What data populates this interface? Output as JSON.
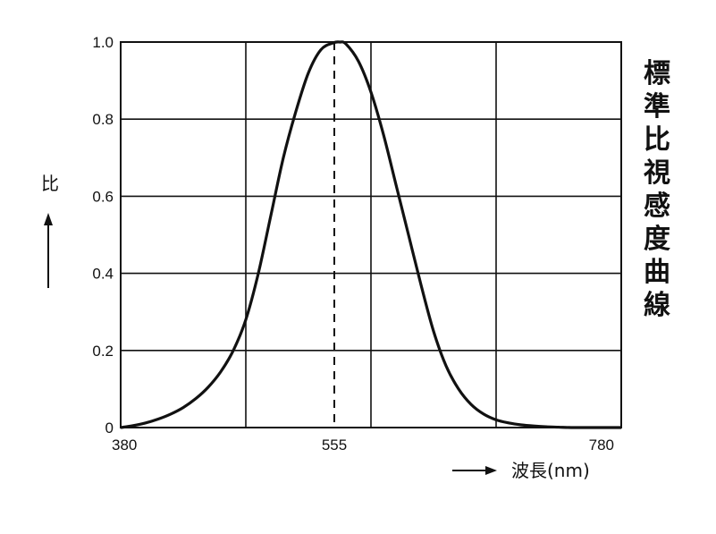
{
  "chart_data": {
    "type": "line",
    "title": "標準比視感度曲線",
    "xlabel": "波長(nm)",
    "ylabel": "比",
    "xlim": [
      380,
      780
    ],
    "ylim": [
      0,
      1.0
    ],
    "x_ticks": [
      380,
      555,
      780
    ],
    "y_ticks": [
      0,
      0.2,
      0.4,
      0.6,
      0.8,
      1.0
    ],
    "y_tick_labels": [
      "0",
      "0.2",
      "0.4",
      "0.6",
      "0.8",
      "1.0"
    ],
    "grid": true,
    "peak": {
      "x": 555,
      "y": 1.0
    },
    "series": [
      {
        "x": [
          380,
          390,
          400,
          410,
          420,
          430,
          440,
          450,
          460,
          470,
          480,
          490,
          500,
          510,
          520,
          530,
          540,
          550,
          555,
          560,
          570,
          580,
          590,
          600,
          610,
          620,
          630,
          640,
          650,
          660,
          670,
          680,
          690,
          700,
          710,
          720,
          730,
          740,
          750,
          760,
          770,
          780
        ],
        "values": [
          0.0,
          0.005,
          0.012,
          0.022,
          0.035,
          0.052,
          0.075,
          0.105,
          0.145,
          0.2,
          0.28,
          0.4,
          0.55,
          0.7,
          0.82,
          0.92,
          0.98,
          0.998,
          1.0,
          0.995,
          0.95,
          0.87,
          0.76,
          0.63,
          0.5,
          0.37,
          0.25,
          0.16,
          0.1,
          0.06,
          0.035,
          0.02,
          0.012,
          0.007,
          0.004,
          0.002,
          0.001,
          0.0,
          0.0,
          0.0,
          0.0,
          0.0
        ]
      }
    ]
  }
}
